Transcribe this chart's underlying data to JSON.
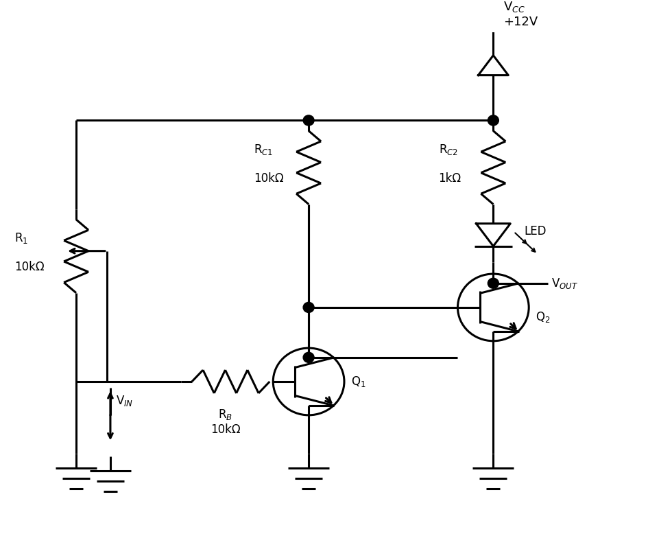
{
  "bg_color": "#ffffff",
  "line_color": "#000000",
  "line_width": 2.2,
  "fig_width": 9.8,
  "fig_height": 7.97,
  "labels": {
    "R1_name": "R$_1$",
    "R1_val": "10kΩ",
    "RC1_name": "R$_{C1}$",
    "RC1_val": "10kΩ",
    "RC2_name": "R$_{C2}$",
    "RC2_val": "1kΩ",
    "RB_name": "R$_B$",
    "RB_val": "10kΩ",
    "VCC": "V$_{CC}$\n+12V",
    "VIN": "V$_{IN}$",
    "VOUT": "V$_{OUT}$",
    "LED": "LED",
    "Q1": "Q$_1$",
    "Q2": "Q$_2$"
  }
}
